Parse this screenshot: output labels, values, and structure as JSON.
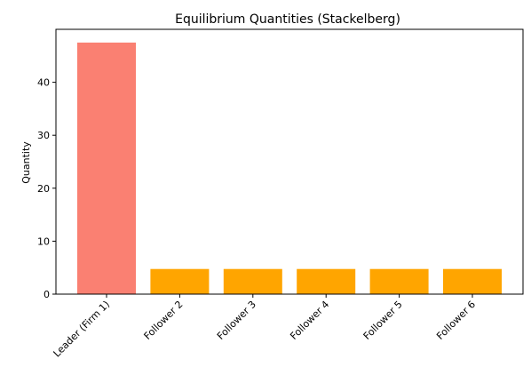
{
  "chart_data": {
    "type": "bar",
    "title": "Equilibrium Quantities (Stackelberg)",
    "xlabel": "",
    "ylabel": "Quantity",
    "categories": [
      "Leader (Firm 1)",
      "Follower 2",
      "Follower 3",
      "Follower 4",
      "Follower 5",
      "Follower 6"
    ],
    "values": [
      47.5,
      4.75,
      4.75,
      4.75,
      4.75,
      4.75
    ],
    "bar_colors": [
      "#FA8072",
      "#FFA500",
      "#FFA500",
      "#FFA500",
      "#FFA500",
      "#FFA500"
    ],
    "ylim": [
      0,
      50
    ],
    "yticks": [
      0,
      10,
      20,
      30,
      40
    ],
    "grid": false,
    "legend": "none"
  }
}
